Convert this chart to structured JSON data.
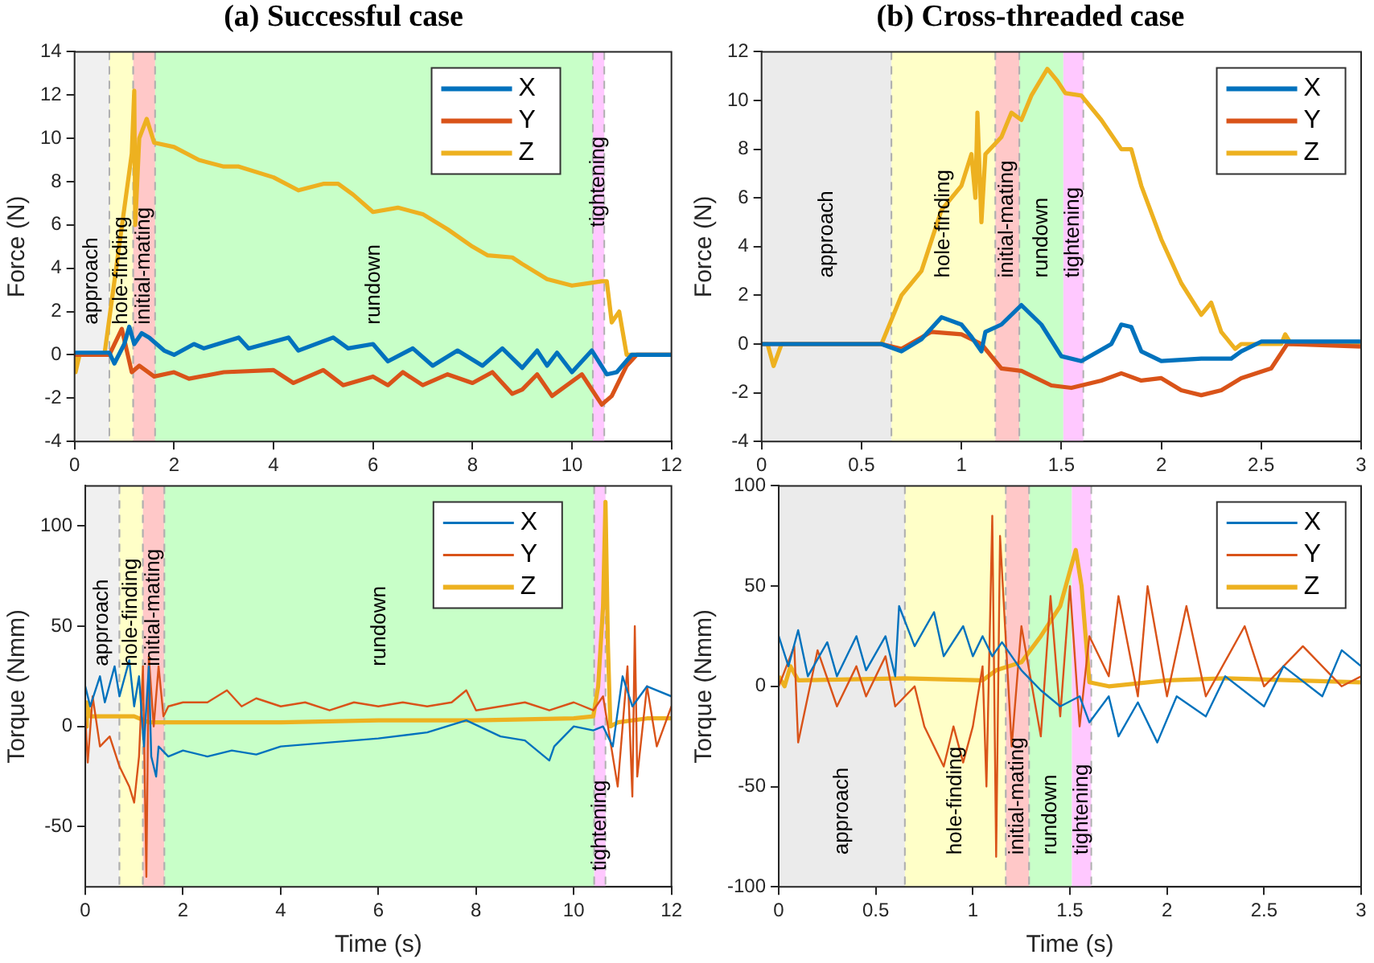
{
  "chart_data": [
    {
      "type": "line",
      "title": "(a) Successful case",
      "ylabel": "Force (N)",
      "xlim": [
        0,
        12
      ],
      "xticks": [
        0,
        2,
        4,
        6,
        8,
        10,
        12
      ],
      "ylim": [
        -4,
        14
      ],
      "yticks": [
        -4,
        -2,
        0,
        2,
        4,
        6,
        8,
        10,
        12,
        14
      ],
      "grid": false,
      "legend": "top right",
      "marker": "none",
      "line_style": "solid",
      "bands": [
        {
          "axis": "x",
          "from": 0,
          "to": 0.7,
          "label": "approach",
          "color": "#f0f0f0"
        },
        {
          "axis": "x",
          "from": 0.7,
          "to": 1.18,
          "label": "hole-finding",
          "color": "#ffffc8"
        },
        {
          "axis": "x",
          "from": 1.18,
          "to": 1.62,
          "label": "initial-mating",
          "color": "#ffc8c8"
        },
        {
          "axis": "x",
          "from": 1.62,
          "to": 10.42,
          "label": "rundown",
          "color": "#c8ffc8"
        },
        {
          "axis": "x",
          "from": 10.42,
          "to": 10.65,
          "label": "tightening",
          "color": "#ffc8ff"
        }
      ],
      "series": [
        {
          "name": "X",
          "color": "#0072bd",
          "x": [
            0,
            0.3,
            0.7,
            0.8,
            1.0,
            1.1,
            1.2,
            1.35,
            1.5,
            1.8,
            2.0,
            2.4,
            2.6,
            3.3,
            3.5,
            4.3,
            4.5,
            5.2,
            5.5,
            6.0,
            6.3,
            6.8,
            7.2,
            7.7,
            8.2,
            8.6,
            9.0,
            9.3,
            9.5,
            9.7,
            10.0,
            10.4,
            10.7,
            10.9,
            11.2,
            12
          ],
          "values": [
            0.1,
            0.1,
            0.1,
            -0.4,
            0.5,
            1.3,
            0.5,
            1.0,
            0.8,
            0.2,
            0,
            0.5,
            0.3,
            0.8,
            0.3,
            0.8,
            0.2,
            0.8,
            0.3,
            0.5,
            -0.3,
            0.3,
            -0.5,
            0.2,
            -0.5,
            0.3,
            -0.6,
            0.2,
            -0.5,
            0.1,
            -0.8,
            0.2,
            -0.9,
            -0.8,
            0,
            0
          ]
        },
        {
          "name": "Y",
          "color": "#d95319",
          "x": [
            0,
            0.7,
            0.95,
            1.15,
            1.3,
            1.6,
            2.0,
            2.3,
            3.0,
            4.0,
            4.4,
            5.0,
            5.4,
            6.0,
            6.3,
            6.6,
            7.0,
            7.5,
            8.0,
            8.4,
            8.8,
            9.0,
            9.3,
            9.6,
            10.2,
            10.6,
            10.8,
            11.1,
            11.3,
            12
          ],
          "values": [
            0,
            0,
            1.2,
            -0.8,
            -0.5,
            -1,
            -0.8,
            -1.1,
            -0.8,
            -0.7,
            -1.3,
            -0.7,
            -1.4,
            -1.0,
            -1.4,
            -0.8,
            -1.4,
            -0.9,
            -1.3,
            -0.8,
            -1.8,
            -1.6,
            -0.9,
            -1.9,
            -0.9,
            -2.3,
            -1.9,
            -0.5,
            0,
            0
          ]
        },
        {
          "name": "Z",
          "color": "#edb120",
          "x": [
            0,
            0.02,
            0.1,
            0.6,
            1.15,
            1.2,
            1.22,
            1.3,
            1.45,
            1.6,
            2.0,
            2.5,
            3.0,
            3.3,
            4.0,
            4.5,
            5.0,
            5.3,
            5.6,
            6.0,
            6.5,
            7.0,
            7.5,
            8.0,
            8.3,
            8.8,
            9.0,
            9.5,
            10.0,
            10.3,
            10.6,
            10.7,
            10.8,
            10.95,
            11.1,
            12
          ],
          "values": [
            0,
            -0.8,
            0,
            0,
            9.3,
            12.2,
            6,
            10,
            10.9,
            9.8,
            9.6,
            9.0,
            8.7,
            8.7,
            8.2,
            7.6,
            7.9,
            7.9,
            7.4,
            6.6,
            6.8,
            6.5,
            5.8,
            5.0,
            4.6,
            4.5,
            4.2,
            3.5,
            3.2,
            3.3,
            3.4,
            3.4,
            1.5,
            2.0,
            0,
            0
          ]
        }
      ]
    },
    {
      "type": "line",
      "title": "(b) Cross-threaded case",
      "ylabel": "Force (N)",
      "xlim": [
        0,
        3
      ],
      "xticks": [
        0,
        0.5,
        1,
        1.5,
        2,
        2.5,
        3
      ],
      "ylim": [
        -4,
        12
      ],
      "yticks": [
        -4,
        -2,
        0,
        2,
        4,
        6,
        8,
        10,
        12
      ],
      "grid": false,
      "legend": "top right",
      "marker": "none",
      "line_style": "solid",
      "bands": [
        {
          "axis": "x",
          "from": 0,
          "to": 0.65,
          "label": "approach",
          "color": "#ebebeb"
        },
        {
          "axis": "x",
          "from": 0.65,
          "to": 1.17,
          "label": "hole-finding",
          "color": "#ffffc8"
        },
        {
          "axis": "x",
          "from": 1.17,
          "to": 1.29,
          "label": "initial-mating",
          "color": "#ffc8c8"
        },
        {
          "axis": "x",
          "from": 1.29,
          "to": 1.51,
          "label": "rundown",
          "color": "#c8ffc8"
        },
        {
          "axis": "x",
          "from": 1.51,
          "to": 1.61,
          "label": "tightening",
          "color": "#ffc8ff"
        }
      ],
      "series": [
        {
          "name": "X",
          "color": "#0072bd",
          "x": [
            0,
            0.6,
            0.7,
            0.8,
            0.9,
            1.0,
            1.05,
            1.1,
            1.12,
            1.2,
            1.3,
            1.4,
            1.5,
            1.6,
            1.75,
            1.8,
            1.85,
            1.9,
            2.0,
            2.2,
            2.35,
            2.4,
            2.5,
            3
          ],
          "values": [
            0,
            0,
            -0.3,
            0.2,
            1.1,
            0.8,
            0.3,
            -0.3,
            0.5,
            0.8,
            1.6,
            0.8,
            -0.5,
            -0.7,
            0,
            0.8,
            0.7,
            -0.3,
            -0.7,
            -0.6,
            -0.6,
            -0.3,
            0.1,
            0.1
          ]
        },
        {
          "name": "Y",
          "color": "#d95319",
          "x": [
            0,
            0.6,
            0.7,
            0.85,
            1.0,
            1.1,
            1.2,
            1.3,
            1.45,
            1.55,
            1.7,
            1.8,
            1.9,
            2.0,
            2.1,
            2.2,
            2.3,
            2.4,
            2.55,
            2.63,
            3
          ],
          "values": [
            0,
            0,
            -0.2,
            0.5,
            0.4,
            0,
            -1,
            -1.1,
            -1.7,
            -1.8,
            -1.5,
            -1.2,
            -1.5,
            -1.4,
            -1.9,
            -2.1,
            -1.9,
            -1.4,
            -1.0,
            0,
            -0.1
          ]
        },
        {
          "name": "Z",
          "color": "#edb120",
          "x": [
            0,
            0.03,
            0.06,
            0.1,
            0.6,
            0.7,
            0.8,
            0.9,
            1.0,
            1.05,
            1.07,
            1.08,
            1.1,
            1.12,
            1.2,
            1.25,
            1.3,
            1.35,
            1.43,
            1.48,
            1.52,
            1.6,
            1.7,
            1.8,
            1.85,
            1.9,
            2.0,
            2.1,
            2.2,
            2.25,
            2.3,
            2.37,
            2.4,
            2.6,
            2.62,
            2.65,
            3
          ],
          "values": [
            0,
            0,
            -0.9,
            0,
            0,
            2,
            3,
            5.5,
            6.5,
            7.8,
            6,
            9.5,
            5,
            7.8,
            8.5,
            9.5,
            9.2,
            10.2,
            11.3,
            10.8,
            10.3,
            10.2,
            9.2,
            8,
            8,
            6.5,
            4.3,
            2.5,
            1.2,
            1.7,
            0.5,
            -0.2,
            0,
            0,
            0.4,
            0,
            0
          ]
        }
      ]
    },
    {
      "type": "line",
      "xlabel": "Time (s)",
      "ylabel": "Torque (Nmm)",
      "xlim": [
        0,
        12
      ],
      "xticks": [
        0,
        2,
        4,
        6,
        8,
        10,
        12
      ],
      "ylim": [
        -80,
        120
      ],
      "yticks": [
        -50,
        0,
        50,
        100
      ],
      "grid": false,
      "legend": "top right",
      "marker": "none",
      "line_style": "solid",
      "bands": [
        {
          "axis": "x",
          "from": 0,
          "to": 0.7,
          "label": "approach",
          "color": "#f0f0f0"
        },
        {
          "axis": "x",
          "from": 0.7,
          "to": 1.18,
          "label": "hole-finding",
          "color": "#ffffc8"
        },
        {
          "axis": "x",
          "from": 1.18,
          "to": 1.62,
          "label": "initial-mating",
          "color": "#ffc8c8"
        },
        {
          "axis": "x",
          "from": 1.62,
          "to": 10.42,
          "label": "rundown",
          "color": "#c8ffc8"
        },
        {
          "axis": "x",
          "from": 10.42,
          "to": 10.65,
          "label": "tightening",
          "color": "#ffc8ff"
        }
      ],
      "series": [
        {
          "name": "X",
          "color": "#0072bd",
          "x": [
            0,
            0.1,
            0.3,
            0.4,
            0.6,
            0.7,
            0.9,
            1.0,
            1.1,
            1.2,
            1.3,
            1.35,
            1.45,
            1.5,
            1.7,
            2,
            2.5,
            3,
            3.5,
            4,
            5,
            6,
            7,
            7.8,
            8.5,
            9.0,
            9.5,
            9.6,
            10,
            10.4,
            10.6,
            10.8,
            11,
            11.2,
            11.5,
            12
          ],
          "values": [
            20,
            10,
            25,
            12,
            30,
            15,
            33,
            10,
            25,
            -10,
            30,
            -15,
            -25,
            -10,
            -15,
            -12,
            -15,
            -12,
            -14,
            -10,
            -8,
            -6,
            -3,
            3,
            -5,
            -7,
            -17,
            -10,
            0,
            -2,
            0,
            -10,
            25,
            10,
            20,
            15
          ]
        },
        {
          "name": "Y",
          "color": "#d95319",
          "x": [
            0,
            0.05,
            0.15,
            0.3,
            0.5,
            0.7,
            0.9,
            1.0,
            1.1,
            1.18,
            1.25,
            1.3,
            1.4,
            1.5,
            1.6,
            1.7,
            2,
            2.5,
            2.9,
            3.2,
            3.5,
            4,
            4.5,
            5,
            5.5,
            6,
            6.5,
            7,
            7.5,
            7.8,
            8,
            8.5,
            9,
            9.5,
            10,
            10.4,
            10.6,
            10.7,
            10.9,
            11.1,
            11.2,
            11.25,
            11.3,
            11.5,
            11.7,
            12
          ],
          "values": [
            5,
            -18,
            15,
            -10,
            -5,
            -20,
            -30,
            -38,
            -15,
            30,
            -75,
            35,
            0,
            30,
            5,
            10,
            12,
            12,
            18,
            10,
            14,
            10,
            12,
            8,
            12,
            10,
            12,
            10,
            12,
            18,
            8,
            10,
            12,
            8,
            12,
            8,
            15,
            0,
            -30,
            30,
            -35,
            50,
            -25,
            20,
            -10,
            10
          ]
        },
        {
          "name": "Z",
          "color": "#edb120",
          "x": [
            0,
            0.03,
            0.1,
            1.0,
            1.3,
            2,
            4,
            6,
            8,
            10,
            10.4,
            10.5,
            10.6,
            10.65,
            10.7,
            10.75,
            10.9,
            11.5,
            12
          ],
          "values": [
            0,
            12,
            5,
            5,
            2,
            2,
            2,
            3,
            3,
            4,
            5,
            20,
            60,
            112,
            40,
            0,
            2,
            4,
            4
          ]
        }
      ]
    },
    {
      "type": "line",
      "xlabel": "Time (s)",
      "ylabel": "Torque (Nmm)",
      "xlim": [
        0,
        3
      ],
      "xticks": [
        0,
        0.5,
        1,
        1.5,
        2,
        2.5,
        3
      ],
      "ylim": [
        -100,
        100
      ],
      "yticks": [
        -100,
        -50,
        0,
        50,
        100
      ],
      "grid": false,
      "legend": "top right",
      "marker": "none",
      "line_style": "solid",
      "bands": [
        {
          "axis": "x",
          "from": 0,
          "to": 0.65,
          "label": "approach",
          "color": "#ebebeb"
        },
        {
          "axis": "x",
          "from": 0.65,
          "to": 1.17,
          "label": "hole-finding",
          "color": "#ffffc8"
        },
        {
          "axis": "x",
          "from": 1.17,
          "to": 1.29,
          "label": "initial-mating",
          "color": "#ffc8c8"
        },
        {
          "axis": "x",
          "from": 1.29,
          "to": 1.51,
          "label": "rundown",
          "color": "#c8ffc8"
        },
        {
          "axis": "x",
          "from": 1.51,
          "to": 1.61,
          "label": "tightening",
          "color": "#ffc8ff"
        }
      ],
      "series": [
        {
          "name": "X",
          "color": "#0072bd",
          "x": [
            0,
            0.05,
            0.1,
            0.15,
            0.25,
            0.3,
            0.4,
            0.45,
            0.55,
            0.6,
            0.62,
            0.7,
            0.8,
            0.85,
            0.95,
            1.0,
            1.05,
            1.1,
            1.15,
            1.25,
            1.35,
            1.45,
            1.55,
            1.6,
            1.7,
            1.75,
            1.85,
            1.95,
            2.05,
            2.2,
            2.3,
            2.5,
            2.6,
            2.8,
            2.9,
            3
          ],
          "values": [
            25,
            10,
            28,
            5,
            22,
            5,
            25,
            8,
            25,
            5,
            40,
            20,
            37,
            15,
            30,
            15,
            25,
            15,
            22,
            8,
            -2,
            -10,
            -5,
            -18,
            -5,
            -25,
            -8,
            -28,
            -5,
            -15,
            5,
            -10,
            10,
            -5,
            18,
            10
          ]
        },
        {
          "name": "Y",
          "color": "#d95319",
          "x": [
            0,
            0.08,
            0.1,
            0.2,
            0.3,
            0.4,
            0.45,
            0.55,
            0.6,
            0.7,
            0.75,
            0.85,
            0.9,
            0.95,
            1.0,
            1.05,
            1.07,
            1.1,
            1.12,
            1.14,
            1.2,
            1.25,
            1.35,
            1.4,
            1.45,
            1.5,
            1.55,
            1.6,
            1.7,
            1.75,
            1.85,
            1.9,
            2.0,
            2.1,
            2.2,
            2.4,
            2.5,
            2.7,
            2.9,
            3
          ],
          "values": [
            0,
            20,
            -28,
            18,
            -10,
            10,
            -5,
            15,
            -10,
            0,
            -20,
            -40,
            -20,
            -38,
            -20,
            10,
            -50,
            85,
            -85,
            75,
            -30,
            30,
            -25,
            45,
            -15,
            50,
            -20,
            25,
            5,
            45,
            -5,
            50,
            -5,
            40,
            -5,
            30,
            0,
            20,
            0,
            5
          ]
        },
        {
          "name": "Z",
          "color": "#edb120",
          "x": [
            0,
            0.03,
            0.06,
            0.1,
            0.65,
            1.05,
            1.12,
            1.25,
            1.35,
            1.45,
            1.53,
            1.56,
            1.6,
            1.7,
            2.0,
            2.3,
            3
          ],
          "values": [
            5,
            0,
            10,
            3,
            4,
            3,
            8,
            12,
            25,
            40,
            68,
            50,
            2,
            0,
            3,
            4,
            2
          ]
        }
      ]
    }
  ]
}
